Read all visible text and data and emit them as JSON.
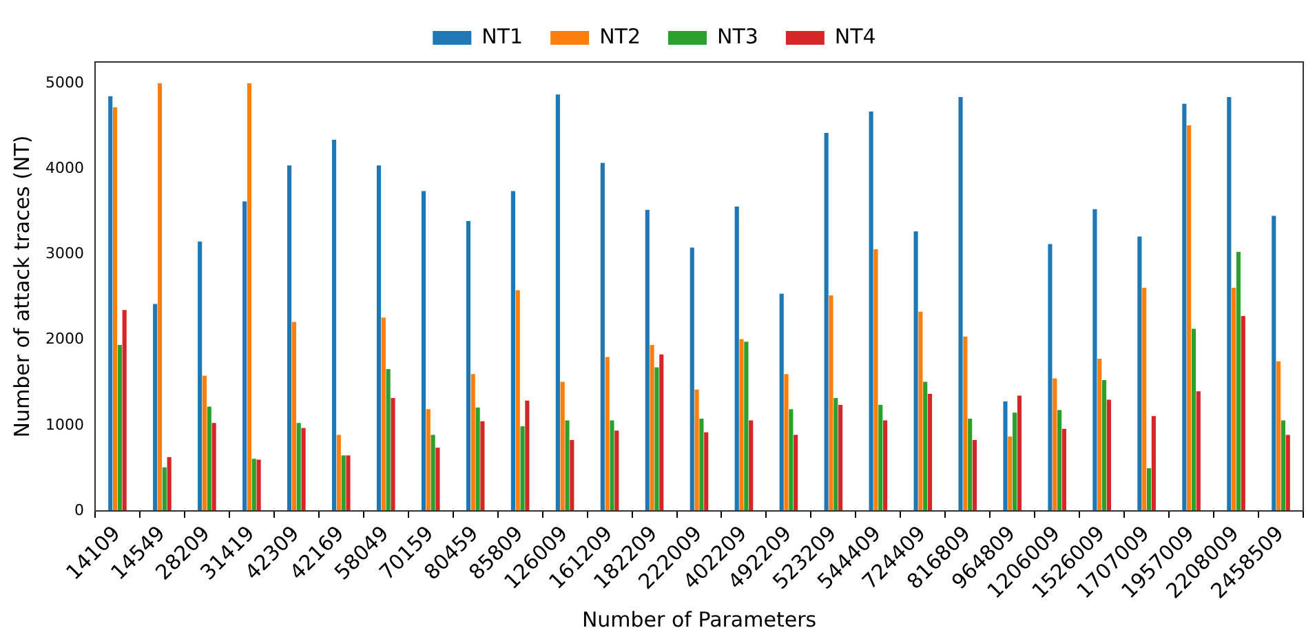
{
  "chart_data": {
    "type": "bar",
    "xlabel": "Number of Parameters",
    "ylabel": "Number of attack traces (NT)",
    "categories": [
      "14109",
      "14549",
      "28209",
      "31419",
      "42309",
      "42169",
      "58049",
      "70159",
      "80459",
      "85809",
      "126009",
      "161209",
      "182209",
      "222009",
      "402209",
      "492209",
      "523209",
      "544409",
      "724409",
      "816809",
      "964809",
      "1206009",
      "1526009",
      "1707009",
      "1957009",
      "2208009",
      "2458509"
    ],
    "series": [
      {
        "name": "NT1",
        "color": "#1f77b4",
        "values": [
          4850,
          2420,
          3150,
          3620,
          4040,
          4340,
          4040,
          3740,
          3390,
          3740,
          4870,
          4070,
          3520,
          3080,
          3560,
          2540,
          4420,
          4670,
          3270,
          4840,
          1280,
          3120,
          3530,
          3210,
          4760,
          4840,
          3450
        ]
      },
      {
        "name": "NT2",
        "color": "#ff7f0e",
        "values": [
          4720,
          5000,
          1580,
          5000,
          2210,
          890,
          2260,
          1190,
          1600,
          2580,
          1510,
          1800,
          1940,
          1420,
          2010,
          1600,
          2520,
          3060,
          2330,
          2040,
          870,
          1550,
          1780,
          2610,
          4510,
          2610,
          1750
        ]
      },
      {
        "name": "NT3",
        "color": "#2ca02c",
        "values": [
          1940,
          510,
          1220,
          610,
          1030,
          650,
          1660,
          890,
          1210,
          990,
          1060,
          1060,
          1680,
          1080,
          1980,
          1190,
          1320,
          1240,
          1510,
          1080,
          1150,
          1180,
          1530,
          500,
          2130,
          3030,
          1060
        ]
      },
      {
        "name": "NT4",
        "color": "#d62728",
        "values": [
          2350,
          630,
          1030,
          600,
          970,
          650,
          1320,
          740,
          1050,
          1290,
          830,
          940,
          1830,
          920,
          1060,
          890,
          1240,
          1060,
          1370,
          830,
          1350,
          960,
          1300,
          1110,
          1400,
          2280,
          890
        ]
      }
    ],
    "ylim": [
      0,
      5250
    ],
    "yticks": [
      0,
      1000,
      2000,
      3000,
      4000,
      5000
    ],
    "grid": false,
    "legend": "top"
  }
}
